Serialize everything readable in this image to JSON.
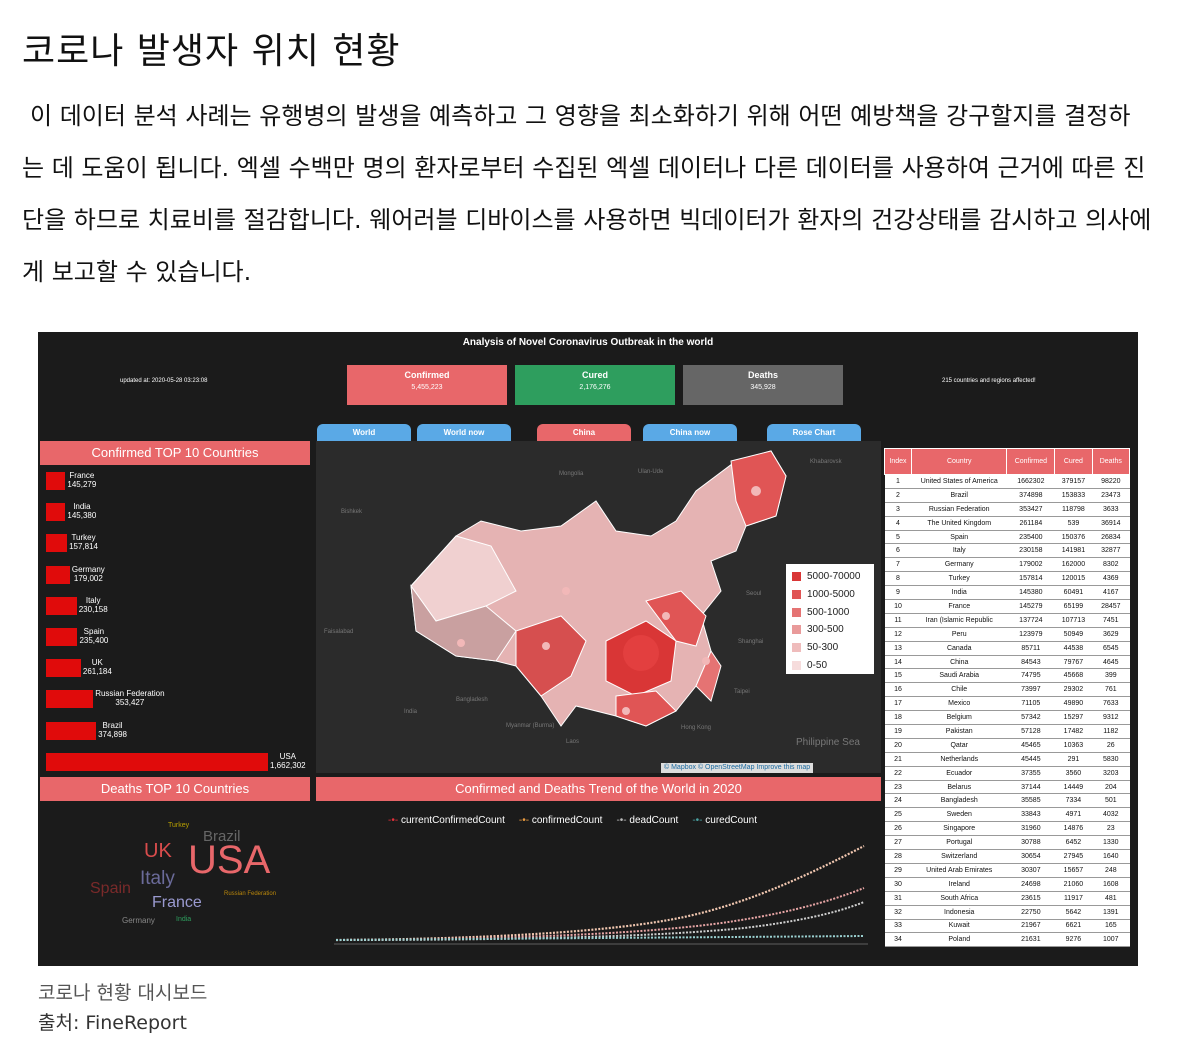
{
  "article": {
    "title": "코로나 발생자 위치 현황",
    "paragraph": "이 데이터 분석 사례는 유행병의 발생을 예측하고 그 영향을 최소화하기 위해 어떤 예방책을 강구할지를 결정하는 데 도움이 됩니다. 엑셀 수백만 명의 환자로부터 수집된 엑셀 데이터나 다른 데이터를 사용하여 근거에 따른 진단을 하므로 치료비를 절감합니다. 웨어러블 디바이스를 사용하면 빅데이터가 환자의 건강상태를 감시하고 의사에게 보고할 수 있습니다.",
    "caption": "코로나 현황 대시보드",
    "source": "출처: FineReport"
  },
  "dashboard": {
    "title": "Analysis of Novel Coronavirus Outbreak in the world",
    "updated": "updated at: 2020-05-28 03:23:08",
    "affected": "215 countries and regions affected!",
    "kpis": [
      {
        "label": "Confirmed",
        "value": "5,455,223",
        "color": "#e8676a"
      },
      {
        "label": "Cured",
        "value": "2,176,276",
        "color": "#2e9e5e"
      },
      {
        "label": "Deaths",
        "value": "345,928",
        "color": "#666666"
      }
    ],
    "tabs": [
      "World",
      "World now",
      "China",
      "China now",
      "Rose Chart"
    ],
    "top10_title": "Confirmed TOP 10 Countries",
    "top10": [
      {
        "name": "France",
        "label": "145,279",
        "value": 145279
      },
      {
        "name": "India",
        "label": "145,380",
        "value": 145380
      },
      {
        "name": "Turkey",
        "label": "157,814",
        "value": 157814
      },
      {
        "name": "Germany",
        "label": "179,002",
        "value": 179002
      },
      {
        "name": "Italy",
        "label": "230,158",
        "value": 230158
      },
      {
        "name": "Spain",
        "label": "235,400",
        "value": 235400
      },
      {
        "name": "UK",
        "label": "261,184",
        "value": 261184
      },
      {
        "name": "Russian Federation",
        "label": "353,427",
        "value": 353427
      },
      {
        "name": "Brazil",
        "label": "374,898",
        "value": 374898
      },
      {
        "name": "USA",
        "label": "1,662,302",
        "value": 1662302
      }
    ],
    "deaths_title": "Deaths TOP 10 Countries",
    "wordcloud": [
      {
        "text": "USA",
        "color": "#e8676a"
      },
      {
        "text": "UK",
        "color": "#d94c4c"
      },
      {
        "text": "Brazil",
        "color": "#666666"
      },
      {
        "text": "Italy",
        "color": "#6b6b9a"
      },
      {
        "text": "France",
        "color": "#9a9ad0"
      },
      {
        "text": "Spain",
        "color": "#7a2a2a"
      },
      {
        "text": "Turkey",
        "color": "#b8a000"
      },
      {
        "text": "Germany",
        "color": "#888888"
      },
      {
        "text": "India",
        "color": "#2e9e5e"
      },
      {
        "text": "Russian Federation",
        "color": "#b8860b"
      }
    ],
    "trend_title": "Confirmed and Deaths Trend of the World in 2020",
    "trend_legend": [
      {
        "name": "currentConfirmedCount",
        "color": "#e0303a"
      },
      {
        "name": "confirmedCount",
        "color": "#e89a40"
      },
      {
        "name": "deadCount",
        "color": "#bbbbbb"
      },
      {
        "name": "curedCount",
        "color": "#4aa0a0"
      }
    ],
    "map_legend": [
      {
        "label": "5000-70000",
        "color": "#d93636"
      },
      {
        "label": "1000-5000",
        "color": "#e05555"
      },
      {
        "label": "500-1000",
        "color": "#e57373"
      },
      {
        "label": "300-500",
        "color": "#e99a9a"
      },
      {
        "label": "50-300",
        "color": "#efbcbc"
      },
      {
        "label": "0-50",
        "color": "#f6dcdc"
      }
    ],
    "map_labels": [
      "Mongolia",
      "Bishkek",
      "Faisalabad",
      "India",
      "Bangladesh",
      "Myanmar (Burma)",
      "Laos",
      "Seoul",
      "Shanghai",
      "Taipei",
      "Philippine Sea",
      "Ulan-Ude",
      "Khabarovsk",
      "Hong Kong"
    ],
    "map_attribution": "© Mapbox © OpenStreetMap Improve this map",
    "table": {
      "headers": [
        "Index",
        "Country",
        "Confirmed",
        "Cured",
        "Deaths"
      ],
      "rows": [
        [
          "1",
          "United States of America",
          "1662302",
          "379157",
          "98220"
        ],
        [
          "2",
          "Brazil",
          "374898",
          "153833",
          "23473"
        ],
        [
          "3",
          "Russian Federation",
          "353427",
          "118798",
          "3633"
        ],
        [
          "4",
          "The United Kingdom",
          "261184",
          "539",
          "36914"
        ],
        [
          "5",
          "Spain",
          "235400",
          "150376",
          "26834"
        ],
        [
          "6",
          "Italy",
          "230158",
          "141981",
          "32877"
        ],
        [
          "7",
          "Germany",
          "179002",
          "162000",
          "8302"
        ],
        [
          "8",
          "Turkey",
          "157814",
          "120015",
          "4369"
        ],
        [
          "9",
          "India",
          "145380",
          "60491",
          "4167"
        ],
        [
          "10",
          "France",
          "145279",
          "65199",
          "28457"
        ],
        [
          "11",
          "Iran (Islamic Republic",
          "137724",
          "107713",
          "7451"
        ],
        [
          "12",
          "Peru",
          "123979",
          "50949",
          "3629"
        ],
        [
          "13",
          "Canada",
          "85711",
          "44538",
          "6545"
        ],
        [
          "14",
          "China",
          "84543",
          "79767",
          "4645"
        ],
        [
          "15",
          "Saudi Arabia",
          "74795",
          "45668",
          "399"
        ],
        [
          "16",
          "Chile",
          "73997",
          "29302",
          "761"
        ],
        [
          "17",
          "Mexico",
          "71105",
          "49890",
          "7633"
        ],
        [
          "18",
          "Belgium",
          "57342",
          "15297",
          "9312"
        ],
        [
          "19",
          "Pakistan",
          "57128",
          "17482",
          "1182"
        ],
        [
          "20",
          "Qatar",
          "45465",
          "10363",
          "26"
        ],
        [
          "21",
          "Netherlands",
          "45445",
          "291",
          "5830"
        ],
        [
          "22",
          "Ecuador",
          "37355",
          "3560",
          "3203"
        ],
        [
          "23",
          "Belarus",
          "37144",
          "14449",
          "204"
        ],
        [
          "24",
          "Bangladesh",
          "35585",
          "7334",
          "501"
        ],
        [
          "25",
          "Sweden",
          "33843",
          "4971",
          "4032"
        ],
        [
          "26",
          "Singapore",
          "31960",
          "14876",
          "23"
        ],
        [
          "27",
          "Portugal",
          "30788",
          "6452",
          "1330"
        ],
        [
          "28",
          "Switzerland",
          "30654",
          "27945",
          "1640"
        ],
        [
          "29",
          "United Arab Emirates",
          "30307",
          "15657",
          "248"
        ],
        [
          "30",
          "Ireland",
          "24698",
          "21060",
          "1608"
        ],
        [
          "31",
          "South Africa",
          "23615",
          "11917",
          "481"
        ],
        [
          "32",
          "Indonesia",
          "22750",
          "5642",
          "1391"
        ],
        [
          "33",
          "Kuwait",
          "21967",
          "6621",
          "165"
        ],
        [
          "34",
          "Poland",
          "21631",
          "9276",
          "1007"
        ]
      ]
    }
  }
}
